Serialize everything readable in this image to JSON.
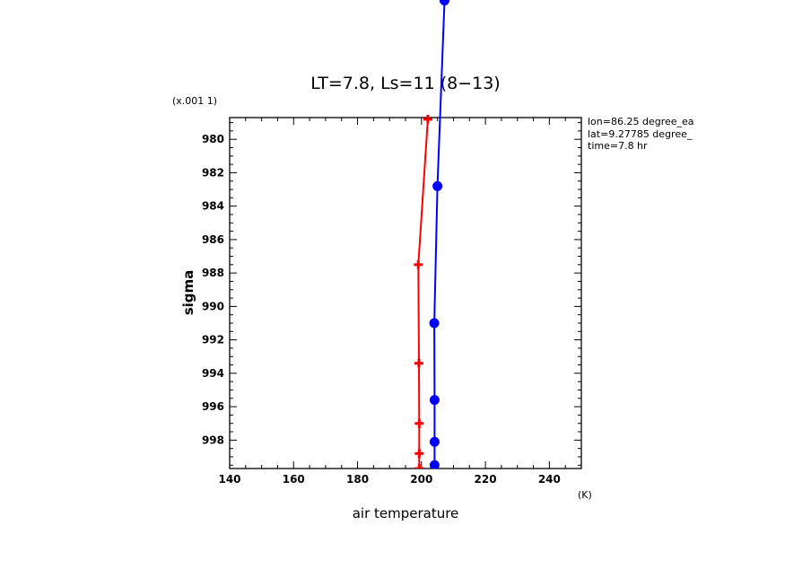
{
  "chart_data": {
    "type": "line",
    "title": "LT=7.8, Ls=11 (8−13)",
    "xlabel": "air temperature",
    "ylabel": "sigma",
    "x_unit": "(K)",
    "y_scale_note": "(x.001 1)",
    "xlim": [
      140,
      250
    ],
    "ylim": [
      999.7,
      978.7
    ],
    "y_inverted": true,
    "x_ticks": [
      "140",
      "160",
      "180",
      "200",
      "220",
      "240"
    ],
    "y_ticks": [
      "980",
      "982",
      "984",
      "986",
      "988",
      "990",
      "992",
      "994",
      "996",
      "998"
    ],
    "grid": false,
    "annotations": [
      "lon=86.25 degree_ea",
      "lat=9.27785 degree_",
      "time=7.8 hr"
    ],
    "series": [
      {
        "color": "#ff0000",
        "marker": "plus",
        "points": [
          {
            "x": 202.0,
            "y": 978.8
          },
          {
            "x": 199.0,
            "y": 987.5
          },
          {
            "x": 199.2,
            "y": 993.4
          },
          {
            "x": 199.3,
            "y": 997.0
          },
          {
            "x": 199.3,
            "y": 998.8
          },
          {
            "x": 199.3,
            "y": 999.7
          }
        ]
      },
      {
        "color": "#0000ff",
        "marker": "circle",
        "points": [
          {
            "x": 207.2,
            "y": 971.7
          },
          {
            "x": 205.0,
            "y": 982.8
          },
          {
            "x": 204.0,
            "y": 991.0
          },
          {
            "x": 204.1,
            "y": 995.6
          },
          {
            "x": 204.1,
            "y": 998.1
          },
          {
            "x": 204.1,
            "y": 999.5
          }
        ]
      }
    ]
  }
}
